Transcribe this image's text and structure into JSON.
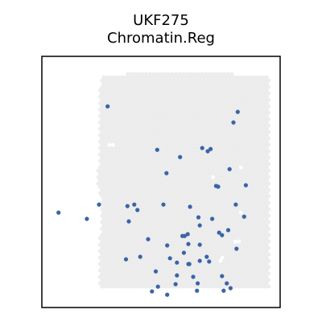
{
  "chart_data": {
    "type": "scatter",
    "title": "UKF275",
    "subtitle": "Chromatin.Reg",
    "xlabel": "",
    "ylabel": "",
    "xlim": [
      0,
      100
    ],
    "ylim": [
      0,
      100
    ],
    "grid": false,
    "colors": {
      "background_spot": "#ececec",
      "highlight_spot": "#3a64a8",
      "frame": "#000000"
    },
    "highlight_points": [
      {
        "x": 27.6,
        "y": 80.1
      },
      {
        "x": 80.4,
        "y": 73.7
      },
      {
        "x": 82.2,
        "y": 77.9
      },
      {
        "x": 48.4,
        "y": 62.8
      },
      {
        "x": 58.0,
        "y": 59.9
      },
      {
        "x": 67.3,
        "y": 63.5
      },
      {
        "x": 69.6,
        "y": 62.2
      },
      {
        "x": 70.8,
        "y": 63.1
      },
      {
        "x": 52.3,
        "y": 53.5
      },
      {
        "x": 78.8,
        "y": 55.1
      },
      {
        "x": 73.1,
        "y": 48.4
      },
      {
        "x": 74.0,
        "y": 48.1
      },
      {
        "x": 85.6,
        "y": 48.7
      },
      {
        "x": 7.0,
        "y": 37.8
      },
      {
        "x": 18.9,
        "y": 35.3
      },
      {
        "x": 24.0,
        "y": 41.0
      },
      {
        "x": 35.9,
        "y": 40.4
      },
      {
        "x": 38.8,
        "y": 41.0
      },
      {
        "x": 40.1,
        "y": 38.8
      },
      {
        "x": 51.0,
        "y": 41.0
      },
      {
        "x": 62.2,
        "y": 40.1
      },
      {
        "x": 81.4,
        "y": 41.0
      },
      {
        "x": 65.7,
        "y": 35.9
      },
      {
        "x": 71.5,
        "y": 35.3
      },
      {
        "x": 84.9,
        "y": 36.2
      },
      {
        "x": 36.5,
        "y": 34.3
      },
      {
        "x": 66.3,
        "y": 32.7
      },
      {
        "x": 61.2,
        "y": 29.2
      },
      {
        "x": 59.0,
        "y": 28.5
      },
      {
        "x": 59.9,
        "y": 28.5
      },
      {
        "x": 78.2,
        "y": 30.8
      },
      {
        "x": 44.6,
        "y": 27.2
      },
      {
        "x": 52.6,
        "y": 24.7
      },
      {
        "x": 61.5,
        "y": 25.3
      },
      {
        "x": 66.3,
        "y": 25.0
      },
      {
        "x": 74.4,
        "y": 29.8
      },
      {
        "x": 75.6,
        "y": 28.8
      },
      {
        "x": 81.7,
        "y": 23.4
      },
      {
        "x": 59.6,
        "y": 21.8
      },
      {
        "x": 53.8,
        "y": 19.6
      },
      {
        "x": 69.2,
        "y": 20.2
      },
      {
        "x": 66.3,
        "y": 18.6
      },
      {
        "x": 70.2,
        "y": 18.3
      },
      {
        "x": 35.3,
        "y": 19.2
      },
      {
        "x": 41.3,
        "y": 20.2
      },
      {
        "x": 56.7,
        "y": 17.9
      },
      {
        "x": 61.5,
        "y": 17.3
      },
      {
        "x": 61.9,
        "y": 17.3
      },
      {
        "x": 47.8,
        "y": 14.4
      },
      {
        "x": 56.7,
        "y": 12.8
      },
      {
        "x": 63.5,
        "y": 12.2
      },
      {
        "x": 48.7,
        "y": 8.3
      },
      {
        "x": 56.1,
        "y": 9.3
      },
      {
        "x": 65.4,
        "y": 9.6
      },
      {
        "x": 77.6,
        "y": 9.6
      },
      {
        "x": 46.2,
        "y": 6.4
      },
      {
        "x": 65.1,
        "y": 6.7
      },
      {
        "x": 76.3,
        "y": 6.7
      },
      {
        "x": 79.2,
        "y": 7.7
      },
      {
        "x": 52.6,
        "y": 5.1
      },
      {
        "x": 75.6,
        "y": 12.5
      }
    ]
  }
}
